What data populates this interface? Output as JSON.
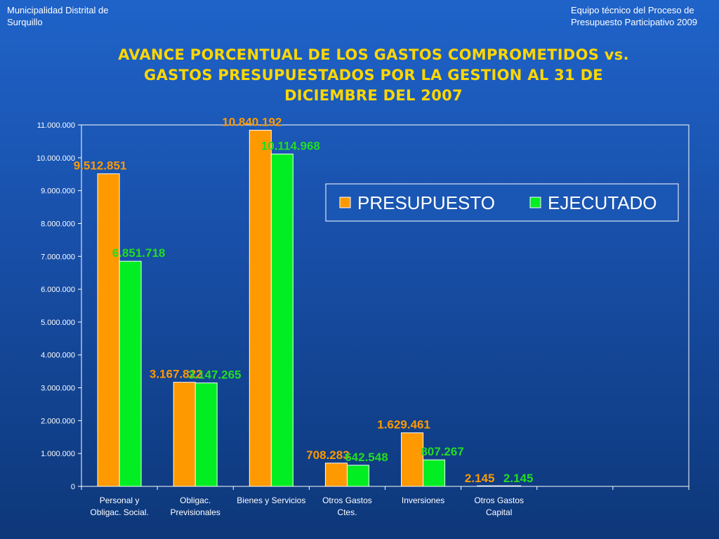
{
  "header": {
    "left_line1": "Municipalidad Distrital de",
    "left_line2": "Surquillo",
    "right_line1": "Equipo técnico del Proceso de",
    "right_line2": "Presupuesto Participativo 2009"
  },
  "title_lines": [
    "AVANCE PORCENTUAL DE LOS GASTOS COMPROMETIDOS vs.",
    "GASTOS PRESUPUESTADOS POR LA GESTION AL 31 DE",
    "DICIEMBRE DEL 2007"
  ],
  "colors": {
    "presupuesto": "#ff9900",
    "ejecutado": "#00ee22",
    "presupuesto_label": "#ff9900",
    "ejecutado_label": "#22dd22",
    "title": "#ffd700"
  },
  "chart_data": {
    "type": "bar",
    "title": "AVANCE PORCENTUAL DE LOS GASTOS COMPROMETIDOS vs. GASTOS PRESUPUESTADOS POR LA GESTION AL 31 DE DICIEMBRE DEL 2007",
    "categories": [
      [
        "Personal y",
        "Obligac. Social."
      ],
      [
        "Obligac.",
        "Previsionales"
      ],
      [
        "Bienes y Servicios"
      ],
      [
        "Otros Gastos",
        "Ctes."
      ],
      [
        "Inversiones"
      ],
      [
        "Otros Gastos",
        "Capital"
      ]
    ],
    "slots": 8,
    "series": [
      {
        "name": "PRESUPUESTO",
        "values": [
          9512851,
          3167822,
          10840192,
          708283,
          1629461,
          2145
        ],
        "labels": [
          "9.512.851",
          "3.167.822",
          "10.840.192",
          "708.283",
          "1.629.461",
          "2.145"
        ]
      },
      {
        "name": "EJECUTADO",
        "values": [
          6851718,
          3147265,
          10114968,
          642548,
          807267,
          2145
        ],
        "labels": [
          "6.851.718",
          "3.147.265",
          "10.114.968",
          "642.548",
          "807.267",
          "2.145"
        ]
      }
    ],
    "ylim": [
      0,
      11000000
    ],
    "yticks": [
      0,
      1000000,
      2000000,
      3000000,
      4000000,
      5000000,
      6000000,
      7000000,
      8000000,
      9000000,
      10000000,
      11000000
    ],
    "ytick_labels": [
      "0",
      "1.000.000",
      "2.000.000",
      "3.000.000",
      "4.000.000",
      "5.000.000",
      "6.000.000",
      "7.000.000",
      "8.000.000",
      "9.000.000",
      "10.000.000",
      "11.000.000"
    ],
    "legend_position": "top-right",
    "grid": false
  }
}
